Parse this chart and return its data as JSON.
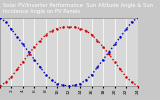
{
  "title": "Solar PV/Inverter Performance  Sun Altitude Angle & Sun Incidence Angle on PV Panels",
  "x_values": [
    0,
    1,
    2,
    3,
    4,
    5,
    6,
    7,
    8,
    9,
    10,
    11,
    12,
    13,
    14,
    15,
    16,
    17,
    18,
    19,
    20,
    21,
    22,
    23,
    24
  ],
  "blue_values": [
    90,
    85,
    75,
    65,
    55,
    45,
    35,
    25,
    15,
    8,
    3,
    1,
    0,
    1,
    3,
    8,
    15,
    25,
    35,
    45,
    55,
    65,
    75,
    85,
    90
  ],
  "red_values": [
    0,
    5,
    12,
    22,
    32,
    42,
    52,
    60,
    68,
    73,
    76,
    78,
    78,
    78,
    76,
    73,
    68,
    60,
    52,
    42,
    32,
    22,
    12,
    5,
    0
  ],
  "blue_color": "#0000cc",
  "red_color": "#cc0000",
  "bg_color": "#c8c8c8",
  "plot_bg": "#d8d8d8",
  "header_color": "#404040",
  "y_right_ticks": [
    0,
    10,
    20,
    30,
    40,
    50,
    60,
    70,
    80,
    90
  ],
  "x_tick_labels": [
    "0",
    "2",
    "4",
    "6",
    "8",
    "10",
    "12",
    "14",
    "16",
    "18",
    "20",
    "22",
    "24"
  ],
  "x_tick_positions": [
    0,
    2,
    4,
    6,
    8,
    10,
    12,
    14,
    16,
    18,
    20,
    22,
    24
  ],
  "xlim": [
    0,
    24
  ],
  "ylim": [
    0,
    90
  ],
  "grid_color": "#ffffff",
  "title_fontsize": 3.8,
  "tick_fontsize": 3.2
}
